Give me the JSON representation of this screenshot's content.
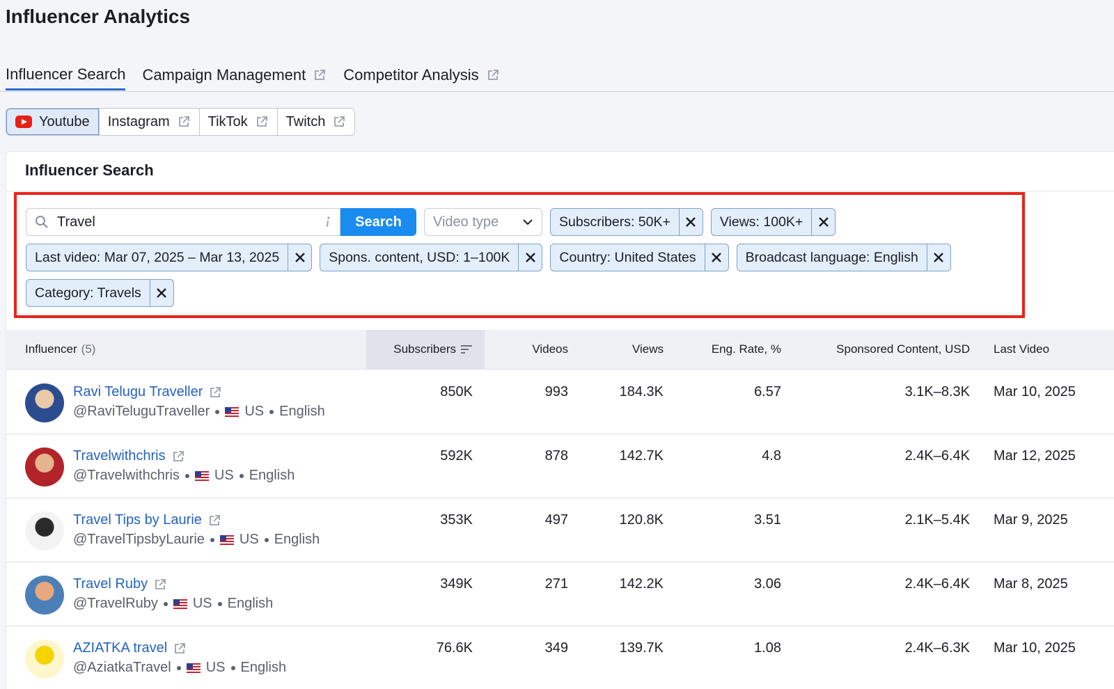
{
  "header": {
    "title": "Influencer Analytics"
  },
  "tabs": [
    "Influencer Search",
    "Campaign Management",
    "Competitor Analysis"
  ],
  "platforms": [
    "Youtube",
    "Instagram",
    "TikTok",
    "Twitch"
  ],
  "panel": {
    "title": "Influencer Search"
  },
  "search": {
    "query": "Travel",
    "button": "Search",
    "video_type": "Video type"
  },
  "filters": [
    "Subscribers: 50K+",
    "Views: 100K+",
    "Last video: Mar 07, 2025 – Mar 13, 2025",
    "Spons. content, USD: 1–100K",
    "Country: United States",
    "Broadcast language: English",
    "Category: Travels"
  ],
  "table": {
    "columns": [
      "Influencer",
      "Subscribers",
      "Videos",
      "Views",
      "Eng. Rate, %",
      "Sponsored Content, USD",
      "Last Video"
    ],
    "influencer_count": "(5)",
    "rows": [
      {
        "name": "Ravi Telugu Traveller",
        "handle": "@RaviTeluguTraveller",
        "country": "US",
        "language": "English",
        "subscribers": "850K",
        "videos": "993",
        "views": "184.3K",
        "eng_rate": "6.57",
        "sponsored": "3.1K–8.3K",
        "last_video": "Mar 10, 2025"
      },
      {
        "name": "Travelwithchris",
        "handle": "@Travelwithchris",
        "country": "US",
        "language": "English",
        "subscribers": "592K",
        "videos": "878",
        "views": "142.7K",
        "eng_rate": "4.8",
        "sponsored": "2.4K–6.4K",
        "last_video": "Mar 12, 2025"
      },
      {
        "name": "Travel Tips by Laurie",
        "handle": "@TravelTipsbyLaurie",
        "country": "US",
        "language": "English",
        "subscribers": "353K",
        "videos": "497",
        "views": "120.8K",
        "eng_rate": "3.51",
        "sponsored": "2.1K–5.4K",
        "last_video": "Mar 9, 2025"
      },
      {
        "name": "Travel Ruby",
        "handle": "@TravelRuby",
        "country": "US",
        "language": "English",
        "subscribers": "349K",
        "videos": "271",
        "views": "142.2K",
        "eng_rate": "3.06",
        "sponsored": "2.4K–6.4K",
        "last_video": "Mar 8, 2025"
      },
      {
        "name": "AZIATKA travel",
        "handle": "@AziatkaTravel",
        "country": "US",
        "language": "English",
        "subscribers": "76.6K",
        "videos": "349",
        "views": "139.7K",
        "eng_rate": "1.08",
        "sponsored": "2.4K–6.3K",
        "last_video": "Mar 10, 2025"
      }
    ]
  }
}
